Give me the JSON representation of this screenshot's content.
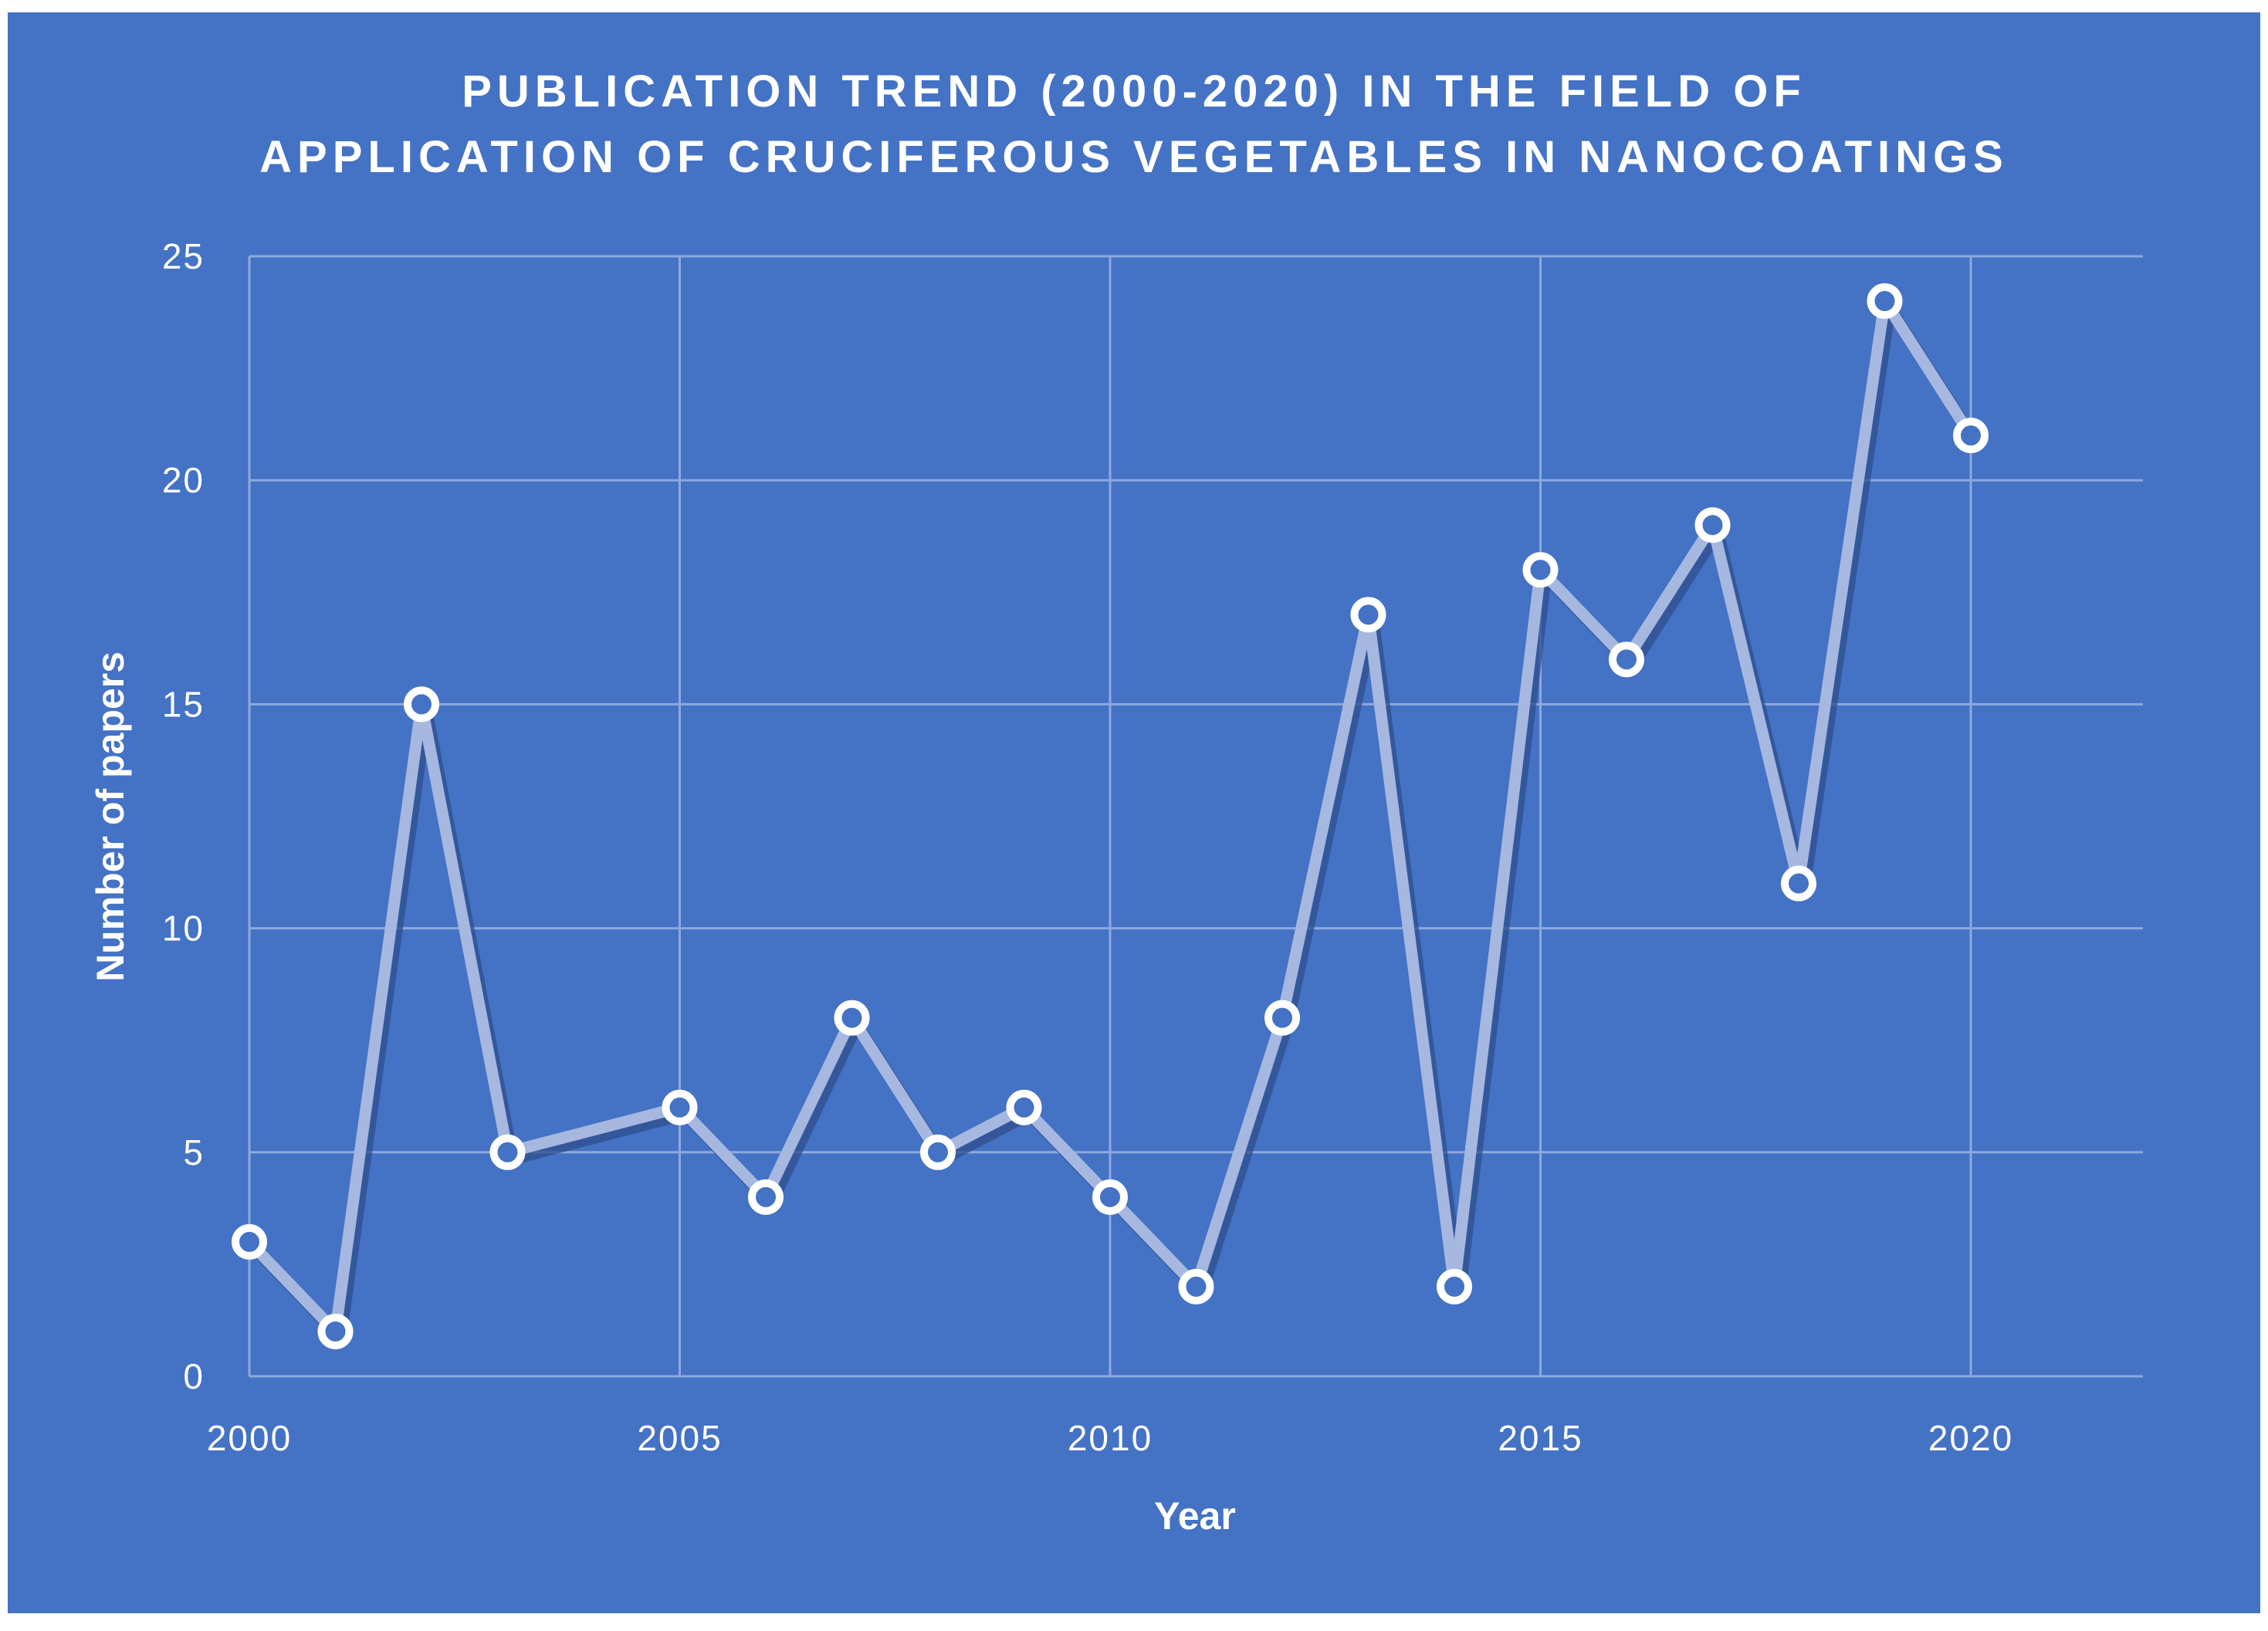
{
  "colors": {
    "background": "#4472c4",
    "frame": "#ffffff",
    "gridline": "#8ea9dc",
    "line": "#a6b8e0",
    "shadow": "#2f4f8f",
    "marker_fill": "#4472c4",
    "marker_stroke": "#ffffff",
    "text": "#ffffff"
  },
  "chart_data": {
    "type": "line",
    "title_lines": [
      "PUBLICATION TREND (2000-2020) IN THE FIELD OF",
      "APPLICATION OF CRUCIFEROUS VEGETABLES IN NANOCOATINGS"
    ],
    "xlabel": "Year",
    "ylabel": "Number of papers",
    "xlim": [
      2000,
      2022
    ],
    "ylim": [
      0,
      25
    ],
    "x_ticks": [
      2000,
      2005,
      2010,
      2015,
      2020
    ],
    "y_ticks": [
      0,
      5,
      10,
      15,
      20,
      25
    ],
    "grid": true,
    "legend": "none",
    "x": [
      2000,
      2001,
      2002,
      2003,
      2005,
      2006,
      2007,
      2008,
      2009,
      2010,
      2011,
      2012,
      2013,
      2014,
      2015,
      2016,
      2017,
      2018,
      2019,
      2020
    ],
    "y": [
      3,
      1,
      15,
      5,
      6,
      4,
      8,
      5,
      6,
      4,
      2,
      8,
      17,
      2,
      18,
      16,
      19,
      11,
      24,
      21
    ]
  }
}
